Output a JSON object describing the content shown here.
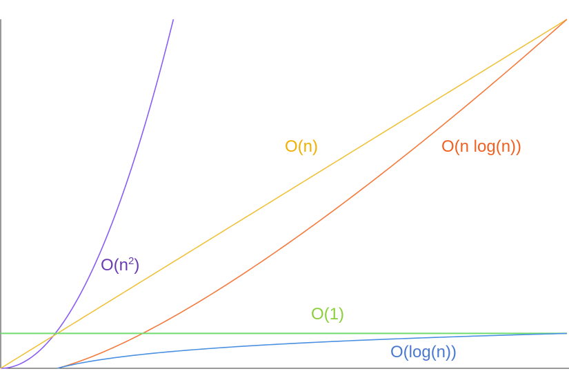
{
  "chart_data": {
    "type": "line",
    "title": "",
    "xlabel": "",
    "ylabel": "",
    "xlim": [
      0,
      10
    ],
    "ylim": [
      0,
      10
    ],
    "grid": false,
    "series": [
      {
        "name": "O(n²)",
        "label_base": "O(n",
        "label_sup": "2",
        "label_tail": ")",
        "color": "#8a5cf6",
        "label_color": "#6a3ab0",
        "function": "quadratic",
        "x": [
          0.0,
          0.5,
          1.0,
          1.5,
          2.0,
          2.5,
          3.0
        ],
        "y": [
          0.0,
          0.3,
          1.0,
          2.8,
          5.4,
          7.9,
          10.0
        ]
      },
      {
        "name": "O(n)",
        "color": "#f0c23a",
        "label_color": "#f0b000",
        "function": "linear",
        "x": [
          0.0,
          10.0
        ],
        "y": [
          0.0,
          10.0
        ]
      },
      {
        "name": "O(n log(n))",
        "color": "#f47a3c",
        "label_color": "#f06020",
        "function": "n_log_n",
        "x": [
          1.0,
          2.5,
          5.0,
          7.5,
          10.0
        ],
        "y": [
          0.0,
          1.3,
          4.2,
          7.0,
          10.0
        ]
      },
      {
        "name": "O(1)",
        "color": "#6fdc6f",
        "label_color": "#8ccf3c",
        "function": "constant",
        "x": [
          0.0,
          10.0
        ],
        "y": [
          1.0,
          1.0
        ]
      },
      {
        "name": "O(log(n))",
        "color": "#4a90e2",
        "label_color": "#4a7ad0",
        "function": "log",
        "x": [
          1.0,
          2.0,
          4.0,
          7.0,
          10.0
        ],
        "y": [
          0.0,
          0.5,
          0.75,
          0.9,
          1.0
        ]
      }
    ]
  }
}
